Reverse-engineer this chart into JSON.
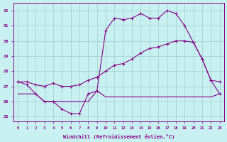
{
  "bg_color": "#c8f0f0",
  "grid_color": "#9ecece",
  "line_color": "#880088",
  "hours": [
    0,
    1,
    2,
    3,
    4,
    5,
    6,
    7,
    8,
    9,
    10,
    11,
    12,
    13,
    14,
    15,
    16,
    17,
    18,
    19,
    20,
    21,
    22,
    23
  ],
  "line1": [
    27.3,
    27.1,
    26.5,
    26.0,
    26.0,
    25.5,
    25.2,
    25.2,
    26.5,
    26.7,
    30.7,
    31.5,
    31.4,
    31.5,
    31.8,
    31.5,
    31.5,
    32.0,
    31.8,
    31.0,
    29.9,
    28.8,
    27.4,
    27.3
  ],
  "line2": [
    27.3,
    27.3,
    27.1,
    27.0,
    27.2,
    27.0,
    27.0,
    27.1,
    27.4,
    27.6,
    28.0,
    28.4,
    28.5,
    28.8,
    29.2,
    29.5,
    29.6,
    29.8,
    30.0,
    30.0,
    29.9,
    28.8,
    27.4,
    26.5
  ],
  "line3": [
    26.5,
    26.5,
    26.5,
    26.0,
    26.0,
    26.0,
    26.0,
    26.0,
    26.0,
    26.7,
    26.3,
    26.3,
    26.3,
    26.3,
    26.3,
    26.3,
    26.3,
    26.3,
    26.3,
    26.3,
    26.3,
    26.3,
    26.3,
    26.5
  ],
  "xlabel": "Windchill (Refroidissement éolien,°C)",
  "ylim": [
    24.7,
    32.5
  ],
  "yticks": [
    25,
    26,
    27,
    28,
    29,
    30,
    31,
    32
  ]
}
